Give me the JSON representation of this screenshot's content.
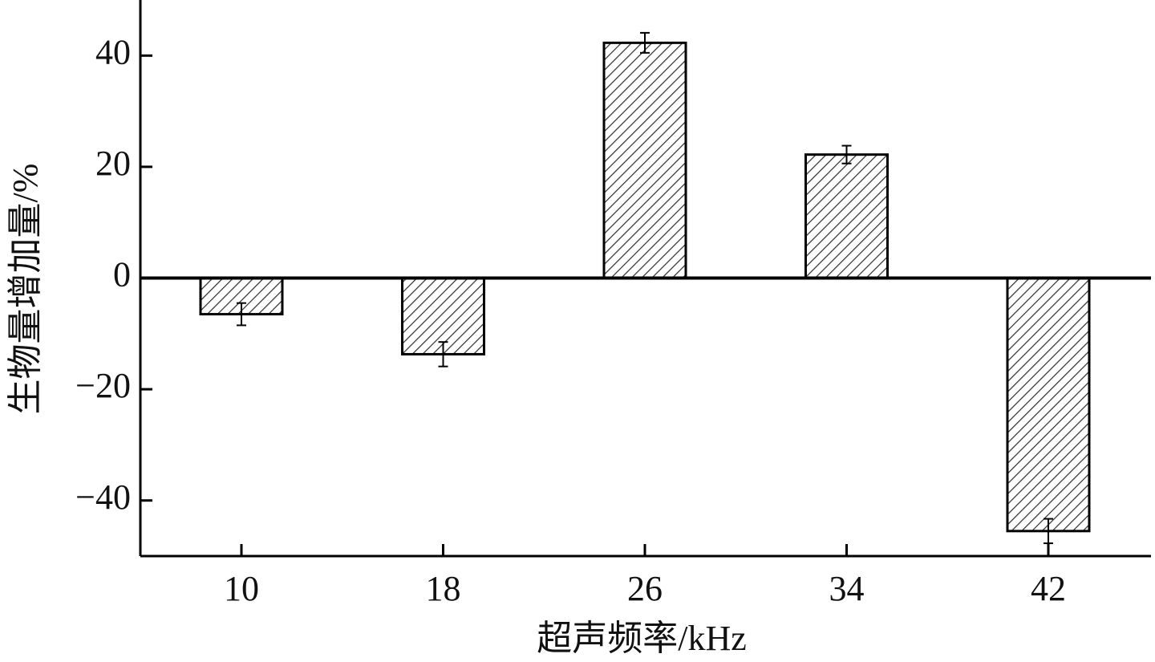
{
  "chart_data": {
    "type": "bar",
    "xlabel": "超声频率/kHz",
    "ylabel": "生物量增加量/%",
    "categories": [
      "10",
      "18",
      "26",
      "34",
      "42"
    ],
    "values": [
      -6.5,
      -13.7,
      42.3,
      22.2,
      -45.5
    ],
    "errors": [
      2.0,
      2.2,
      1.8,
      1.6,
      2.2
    ],
    "color": "#000000",
    "ylim": [
      -50,
      50
    ],
    "yticks": [
      {
        "value": -40,
        "label": "−40"
      },
      {
        "value": -20,
        "label": "−20"
      },
      0,
      20,
      40
    ],
    "grid": false
  }
}
